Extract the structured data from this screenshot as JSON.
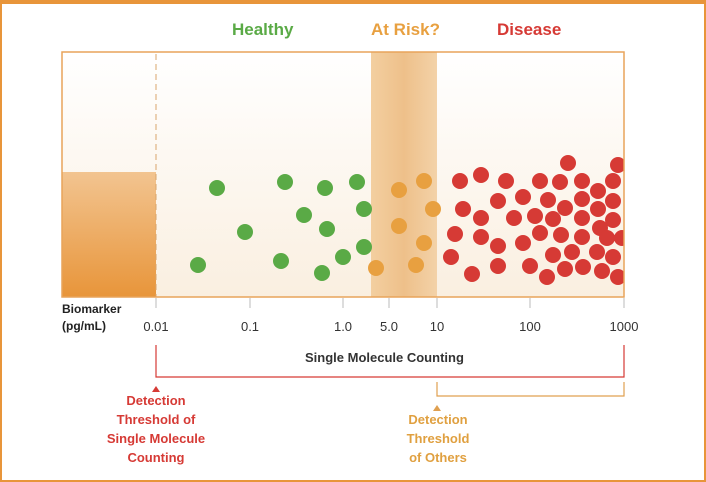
{
  "categories": {
    "healthy": {
      "label": "Healthy",
      "color": "#5aaa46"
    },
    "at_risk": {
      "label": "At Risk?",
      "color": "#e8a040"
    },
    "disease": {
      "label": "Disease",
      "color": "#d63a35"
    }
  },
  "axis": {
    "label_line1": "Biomarker",
    "label_line2": "(pg/mL)",
    "ticks": [
      "0.01",
      "0.1",
      "1.0",
      "5.0",
      "10",
      "100",
      "1000"
    ],
    "scale": "log"
  },
  "ranges": {
    "single_molecule_label": "Single Molecule Counting",
    "single_molecule_range": [
      "0.01",
      "1000"
    ],
    "others_range": [
      "10",
      "1000"
    ],
    "range_color_single": "#d63a35",
    "range_color_others": "#e8a040"
  },
  "notes": {
    "smc_threshold": [
      "Detection",
      "Threshold of",
      "Single Molecule",
      "Counting"
    ],
    "others_threshold": [
      "Detection",
      "Threshold",
      "of Others"
    ]
  },
  "colors": {
    "frame": "#e8953a",
    "plot_border": "#e8a45a"
  }
}
